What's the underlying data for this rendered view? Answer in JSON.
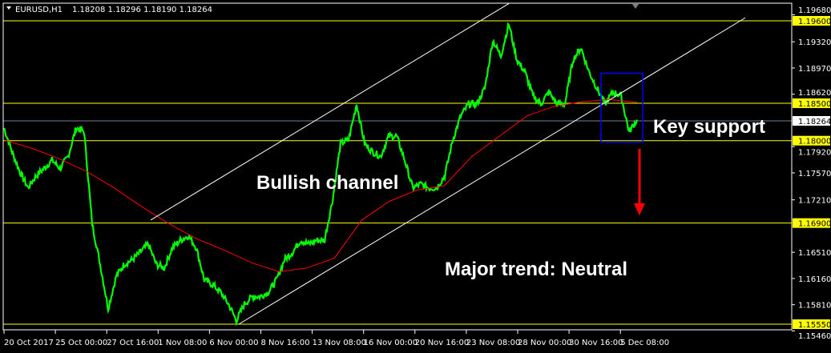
{
  "header": {
    "symbol": "EURUSD,H1",
    "ohlc": "1.18208 1.18296 1.18190 1.18264"
  },
  "colors": {
    "background": "#000000",
    "candles": "#00ff00",
    "ma": "#ff0000",
    "levels": "#ffff00",
    "channel": "#ffffff",
    "box": "#0000ff",
    "arrow": "#ff0000",
    "current_price": "#ffffff"
  },
  "chart_data": {
    "type": "line",
    "ylim": [
      1.1546,
      1.1968
    ],
    "y_ticks": [
      "1.19680",
      "1.19320",
      "1.18970",
      "1.18620",
      "1.17920",
      "1.17570",
      "1.17210",
      "1.16510",
      "1.16160",
      "1.15810",
      "1.15460"
    ],
    "y_tick_values": [
      1.1968,
      1.1932,
      1.1897,
      1.1862,
      1.1792,
      1.1757,
      1.1721,
      1.1651,
      1.1616,
      1.1581,
      1.1546
    ],
    "x_ticks": [
      "20 Oct 2017",
      "25 Oct 00:00",
      "27 Oct 16:00",
      "1 Nov 08:00",
      "6 Nov 00:00",
      "8 Nov 16:00",
      "13 Nov 08:00",
      "16 Nov 00:00",
      "20 Nov 16:00",
      "23 Nov 08:00",
      "28 Nov 00:00",
      "30 Nov 16:00",
      "5 Dec 08:00"
    ],
    "series": [
      {
        "type": "price",
        "values": [
          1.1817,
          1.1785,
          1.1758,
          1.1737,
          1.1753,
          1.1763,
          1.1774,
          1.1763,
          1.1779,
          1.1817,
          1.1812,
          1.1689,
          1.1635,
          1.1576,
          1.1619,
          1.1635,
          1.1641,
          1.1651,
          1.1662,
          1.1635,
          1.163,
          1.1657,
          1.1667,
          1.1673,
          1.1657,
          1.1614,
          1.1608,
          1.1598,
          1.1582,
          1.156,
          1.1582,
          1.1592,
          1.1592,
          1.1598,
          1.1614,
          1.1641,
          1.1651,
          1.1667,
          1.1662,
          1.1667,
          1.1667,
          1.1721,
          1.1796,
          1.1801,
          1.1849,
          1.1796,
          1.1785,
          1.1779,
          1.1806,
          1.1806,
          1.1774,
          1.1737,
          1.1742,
          1.1737,
          1.1737,
          1.1753,
          1.1801,
          1.1833,
          1.1849,
          1.1849,
          1.187,
          1.1934,
          1.1913,
          1.1956,
          1.1908,
          1.1892,
          1.186,
          1.1849,
          1.1865,
          1.1849,
          1.1849,
          1.1908,
          1.1924,
          1.1892,
          1.187,
          1.1849,
          1.1865,
          1.186,
          1.1812,
          1.1828
        ]
      },
      {
        "type": "moving-average",
        "values": [
          1.1801,
          1.179,
          1.1776,
          1.1759,
          1.1737,
          1.1712,
          1.1689,
          1.1669,
          1.1654,
          1.1637,
          1.1625,
          1.163,
          1.1643,
          1.1694,
          1.1719,
          1.1734,
          1.174,
          1.1779,
          1.1806,
          1.1833,
          1.1846,
          1.1852,
          1.1855,
          1.1851
        ]
      }
    ],
    "levels": [
      {
        "price": 1.196,
        "label": "1.19600"
      },
      {
        "price": 1.185,
        "label": "1.18500"
      },
      {
        "price": 1.18,
        "label": "1.18000"
      },
      {
        "price": 1.169,
        "label": "1.16900"
      },
      {
        "price": 1.1555,
        "label": "1.15550"
      }
    ],
    "current_price": {
      "price": 1.18264,
      "label": "1.18264"
    },
    "channel_lines": [
      {
        "from": [
          18.3,
          1.1694
        ],
        "to": [
          63,
          1.1983
        ]
      },
      {
        "from": [
          29.3,
          1.1555
        ],
        "to": [
          92.5,
          1.1964
        ]
      }
    ],
    "support_box": {
      "from_index": 74.5,
      "to_index": 79.7,
      "top": 1.189,
      "bottom": 1.1798
    },
    "annotations": [
      {
        "text": "Bullish channel"
      },
      {
        "text": "Key support"
      },
      {
        "text": "Major trend: Neutral"
      }
    ]
  }
}
